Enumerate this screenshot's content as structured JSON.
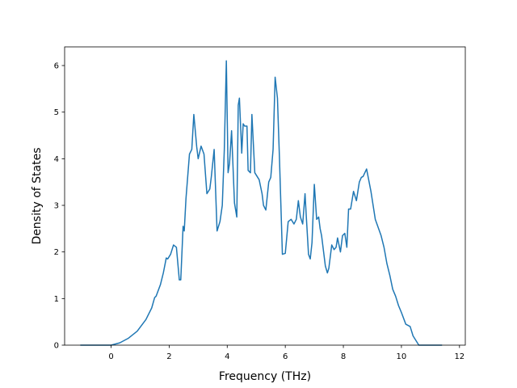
{
  "chart_data": {
    "type": "line",
    "title": "",
    "xlabel": "Frequency (THz)",
    "ylabel": "Density of States",
    "xlim": [
      -1.6,
      12.2
    ],
    "ylim": [
      0,
      6.4
    ],
    "xticks": [
      0,
      2,
      4,
      6,
      8,
      10,
      12
    ],
    "yticks": [
      0,
      1,
      2,
      3,
      4,
      5,
      6
    ],
    "grid": false,
    "series": [
      {
        "color": "#1f77b4",
        "x": [
          -1.06,
          -0.5,
          0.0,
          0.3,
          0.6,
          0.9,
          1.2,
          1.4,
          1.5,
          1.55,
          1.7,
          1.8,
          1.9,
          1.95,
          2.05,
          2.15,
          2.25,
          2.35,
          2.4,
          2.48,
          2.52,
          2.58,
          2.7,
          2.78,
          2.85,
          2.95,
          3.0,
          3.1,
          3.2,
          3.3,
          3.4,
          3.45,
          3.55,
          3.65,
          3.75,
          3.83,
          3.9,
          3.97,
          4.03,
          4.08,
          4.15,
          4.25,
          4.33,
          4.38,
          4.42,
          4.5,
          4.55,
          4.6,
          4.68,
          4.72,
          4.8,
          4.85,
          4.95,
          5.1,
          5.2,
          5.25,
          5.33,
          5.43,
          5.5,
          5.58,
          5.65,
          5.73,
          5.8,
          5.9,
          6.0,
          6.1,
          6.2,
          6.3,
          6.38,
          6.45,
          6.52,
          6.6,
          6.68,
          6.72,
          6.8,
          6.86,
          6.92,
          7.0,
          7.08,
          7.15,
          7.2,
          7.25,
          7.3,
          7.38,
          7.45,
          7.5,
          7.6,
          7.68,
          7.75,
          7.8,
          7.9,
          7.97,
          8.05,
          8.12,
          8.18,
          8.25,
          8.35,
          8.45,
          8.55,
          8.62,
          8.68,
          8.8,
          8.95,
          9.1,
          9.3,
          9.4,
          9.5,
          9.6,
          9.7,
          9.8,
          9.9,
          10.0,
          10.15,
          10.3,
          10.35,
          10.4,
          10.6,
          11.0,
          11.4
        ],
        "y": [
          0.0,
          0.0,
          0.0,
          0.05,
          0.15,
          0.3,
          0.55,
          0.8,
          1.02,
          1.05,
          1.3,
          1.55,
          1.87,
          1.85,
          1.95,
          2.15,
          2.1,
          1.4,
          1.4,
          2.55,
          2.45,
          3.15,
          4.1,
          4.2,
          4.95,
          4.25,
          4.0,
          4.27,
          4.1,
          3.25,
          3.35,
          3.6,
          4.2,
          2.45,
          2.65,
          3.0,
          4.2,
          6.1,
          3.7,
          3.9,
          4.6,
          3.05,
          2.75,
          5.15,
          5.3,
          4.12,
          4.75,
          4.7,
          4.7,
          3.75,
          3.7,
          4.95,
          3.7,
          3.55,
          3.25,
          3.0,
          2.9,
          3.5,
          3.6,
          4.2,
          5.75,
          5.3,
          4.0,
          1.95,
          1.97,
          2.65,
          2.7,
          2.6,
          2.7,
          3.1,
          2.75,
          2.6,
          3.25,
          2.8,
          1.95,
          1.85,
          2.2,
          3.45,
          2.7,
          2.75,
          2.5,
          2.35,
          2.1,
          1.7,
          1.55,
          1.65,
          2.15,
          2.05,
          2.1,
          2.3,
          2.0,
          2.35,
          2.4,
          2.1,
          2.92,
          2.92,
          3.3,
          3.1,
          3.5,
          3.6,
          3.62,
          3.78,
          3.3,
          2.7,
          2.35,
          2.1,
          1.75,
          1.5,
          1.2,
          1.05,
          0.85,
          0.7,
          0.45,
          0.4,
          0.3,
          0.2,
          0.0,
          0.0,
          0.0
        ]
      }
    ]
  }
}
